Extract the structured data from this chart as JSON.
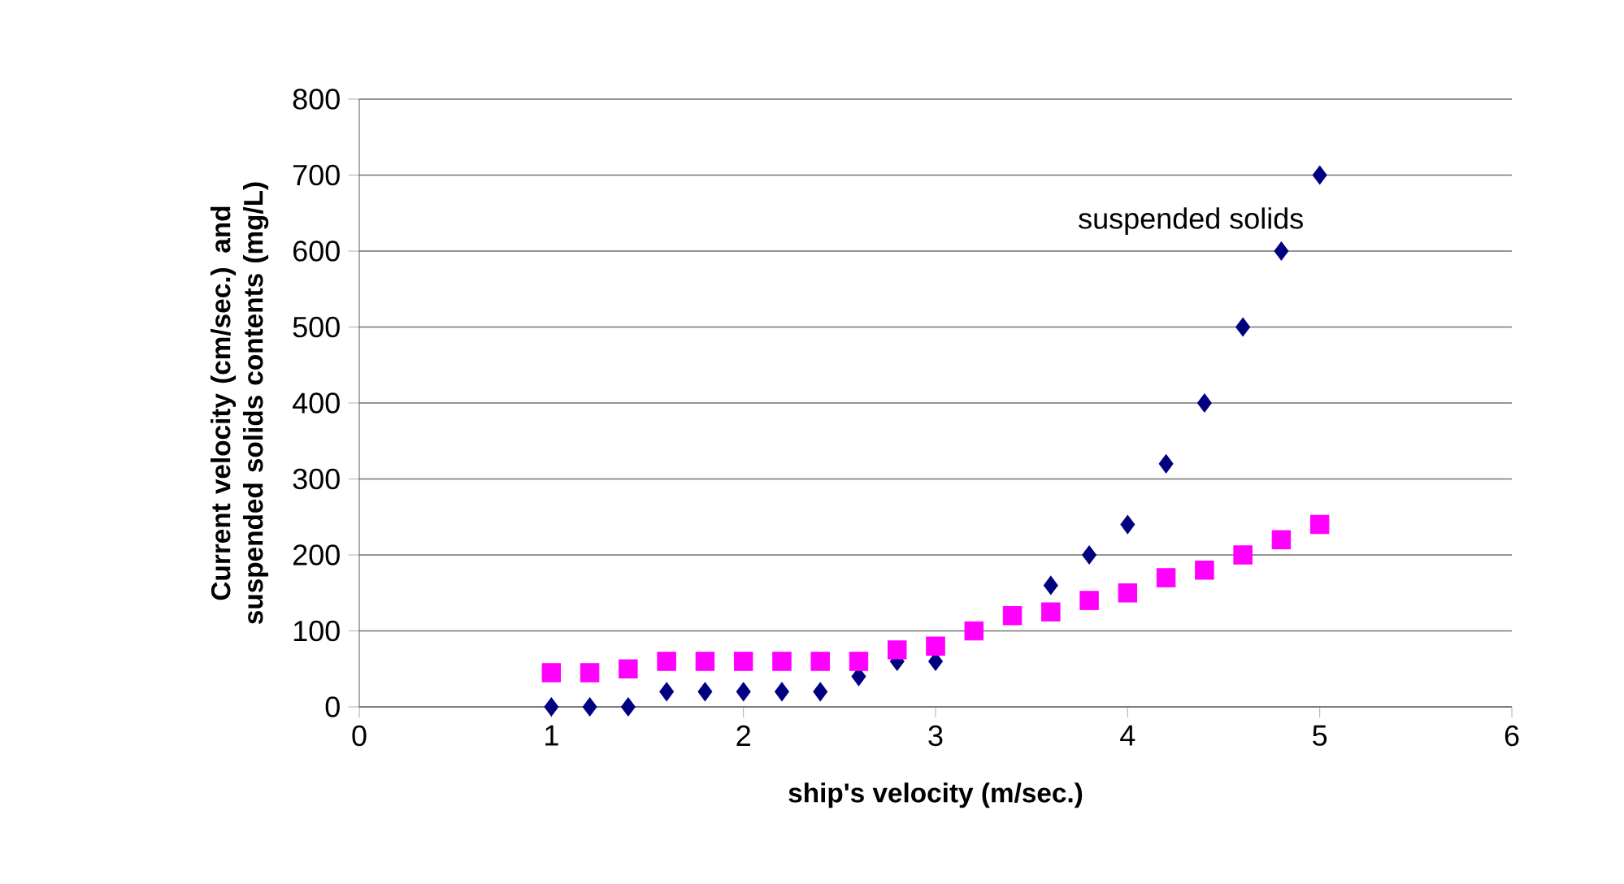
{
  "chart_data": {
    "type": "scatter",
    "xlabel": "ship's velocity (m/sec.)",
    "ylabel": "Current velocity (cm/sec.) and suspended solids contents (mg/L)",
    "xlim": [
      0,
      6
    ],
    "xticks": [
      0,
      1,
      2,
      3,
      4,
      5,
      6
    ],
    "ylim": [
      0,
      800
    ],
    "yticks": [
      0,
      100,
      200,
      300,
      400,
      500,
      600,
      700,
      800
    ],
    "grid": "y",
    "series": [
      {
        "name": "suspended solids",
        "color": "#000080",
        "marker": "diamond",
        "x": [
          1,
          1.2,
          1.4,
          1.6,
          1.8,
          2,
          2.2,
          2.4,
          2.6,
          2.8,
          3,
          3.2,
          3.4,
          3.6,
          3.8,
          4,
          4.2,
          4.4,
          4.6,
          4.8,
          5
        ],
        "values": [
          0,
          0,
          0,
          20,
          20,
          20,
          20,
          20,
          40,
          60,
          60,
          null,
          null,
          160,
          200,
          240,
          320,
          400,
          500,
          600,
          700
        ]
      },
      {
        "color": "#ff00ff",
        "marker": "square",
        "x": [
          1,
          1.2,
          1.4,
          1.6,
          1.8,
          2,
          2.2,
          2.4,
          2.6,
          2.8,
          3,
          3.2,
          3.4,
          3.6,
          3.8,
          4,
          4.2,
          4.4,
          4.6,
          4.8,
          5
        ],
        "values": [
          45,
          45,
          50,
          60,
          60,
          60,
          60,
          60,
          60,
          75,
          80,
          100,
          120,
          125,
          140,
          150,
          170,
          180,
          200,
          220,
          240
        ]
      }
    ]
  }
}
